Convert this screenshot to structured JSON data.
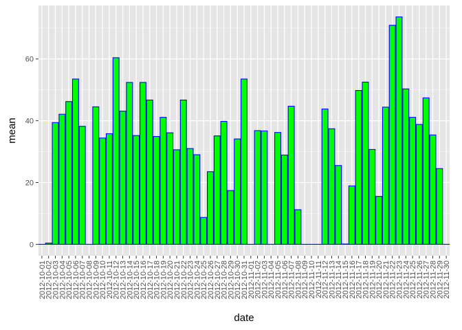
{
  "chart_data": {
    "type": "bar",
    "title": "",
    "xlabel": "date",
    "ylabel": "mean",
    "ylim": [
      -3.7,
      77.3
    ],
    "yticks": [
      0,
      20,
      40,
      60
    ],
    "grid": true,
    "colors": {
      "panel": "#E5E5E5",
      "grid_major": "#FFFFFF",
      "grid_minor": "#F2F2F2",
      "bar_fill": "#00FF00",
      "bar_border": "#0000FF",
      "tick_text": "#4D4D4D"
    },
    "categories": [
      "2012-10-01",
      "2012-10-02",
      "2012-10-03",
      "2012-10-04",
      "2012-10-05",
      "2012-10-06",
      "2012-10-07",
      "2012-10-08",
      "2012-10-09",
      "2012-10-10",
      "2012-10-11",
      "2012-10-12",
      "2012-10-13",
      "2012-10-14",
      "2012-10-15",
      "2012-10-16",
      "2012-10-17",
      "2012-10-18",
      "2012-10-19",
      "2012-10-20",
      "2012-10-21",
      "2012-10-22",
      "2012-10-23",
      "2012-10-24",
      "2012-10-25",
      "2012-10-26",
      "2012-10-27",
      "2012-10-28",
      "2012-10-29",
      "2012-10-30",
      "2012-10-31",
      "2012-11-01",
      "2012-11-02",
      "2012-11-03",
      "2012-11-04",
      "2012-11-05",
      "2012-11-06",
      "2012-11-07",
      "2012-11-08",
      "2012-11-09",
      "2012-11-10",
      "2012-11-11",
      "2012-11-12",
      "2012-11-13",
      "2012-11-14",
      "2012-11-15",
      "2012-11-16",
      "2012-11-17",
      "2012-11-18",
      "2012-11-19",
      "2012-11-20",
      "2012-11-21",
      "2012-11-22",
      "2012-11-23",
      "2012-11-24",
      "2012-11-25",
      "2012-11-26",
      "2012-11-27",
      "2012-11-28",
      "2012-11-29",
      "2012-11-30"
    ],
    "values": [
      0,
      0.4,
      39.4,
      42.1,
      46.2,
      53.5,
      38.2,
      0,
      44.5,
      34.4,
      35.8,
      60.4,
      43.1,
      52.4,
      35.2,
      52.4,
      46.7,
      34.9,
      41.1,
      36.1,
      30.6,
      46.7,
      31.0,
      29.0,
      8.7,
      23.5,
      35.1,
      39.8,
      17.4,
      34.1,
      53.5,
      0,
      36.8,
      36.7,
      0,
      36.2,
      28.9,
      44.7,
      11.2,
      0,
      0,
      0,
      43.8,
      37.4,
      25.5,
      0.1,
      18.9,
      49.8,
      52.5,
      30.7,
      15.5,
      44.4,
      70.9,
      73.6,
      50.3,
      41.1,
      38.8,
      47.4,
      35.4,
      24.5,
      0
    ]
  }
}
